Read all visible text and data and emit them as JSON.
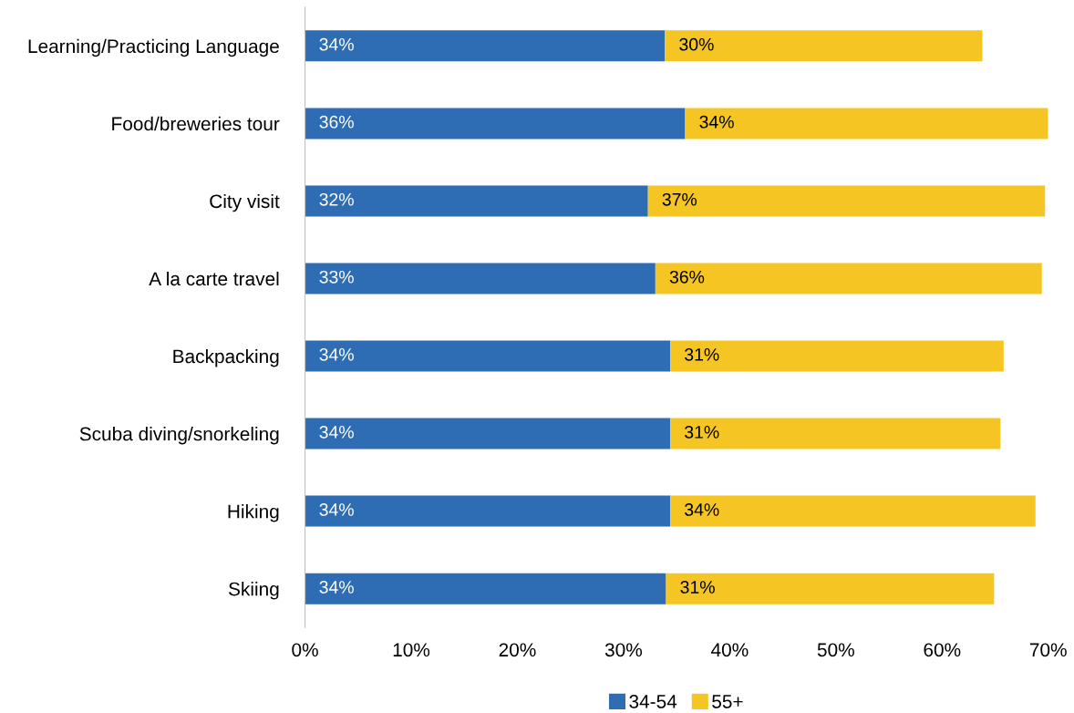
{
  "chart_data": {
    "type": "bar",
    "orientation": "horizontal",
    "stacked": true,
    "categories": [
      "Learning/Practicing Language",
      "Food/breweries tour",
      "City visit",
      "A la carte travel",
      "Backpacking",
      "Scuba diving/snorkeling",
      "Hiking",
      "Skiing"
    ],
    "series": [
      {
        "name": "34-54",
        "color": "#2e6db4",
        "values": [
          33.9,
          35.8,
          32.3,
          33.0,
          34.4,
          34.4,
          34.4,
          34.0
        ],
        "value_labels": [
          "34%",
          "36%",
          "32%",
          "33%",
          "34%",
          "34%",
          "34%",
          "34%"
        ]
      },
      {
        "name": "55+",
        "color": "#f5c623",
        "values": [
          29.9,
          34.2,
          37.4,
          36.4,
          31.4,
          31.1,
          34.4,
          30.9
        ],
        "value_labels": [
          "30%",
          "34%",
          "37%",
          "36%",
          "31%",
          "31%",
          "34%",
          "31%"
        ]
      }
    ],
    "xlim": [
      0,
      70
    ],
    "xticks": [
      {
        "value": 0,
        "label": "0%"
      },
      {
        "value": 10,
        "label": "10%"
      },
      {
        "value": 20,
        "label": "20%"
      },
      {
        "value": 30,
        "label": "30%"
      },
      {
        "value": 40,
        "label": "40%"
      },
      {
        "value": 50,
        "label": "50%"
      },
      {
        "value": 60,
        "label": "60%"
      },
      {
        "value": 70,
        "label": "70%"
      }
    ],
    "grid": false,
    "legend": "bottom"
  }
}
